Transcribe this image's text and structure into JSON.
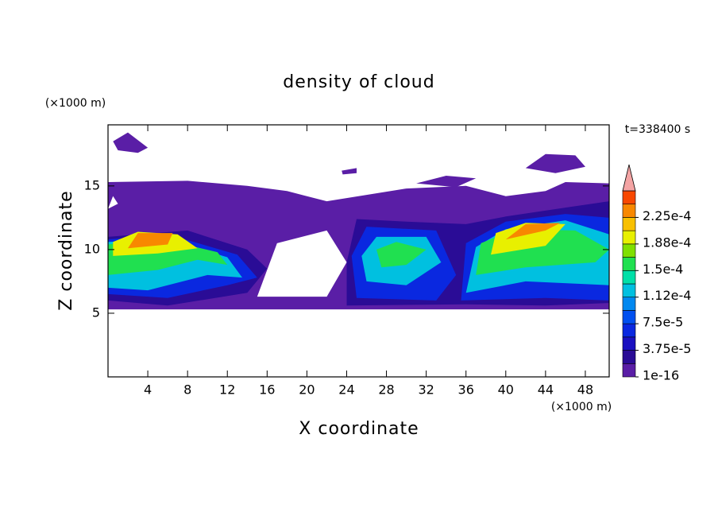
{
  "chart_data": {
    "type": "contour",
    "title": "density of cloud",
    "x_label": "X coordinate",
    "y_label": "Z coordinate",
    "x_unit": "(×1000 m)",
    "y_unit": "(×1000 m)",
    "annotation": "t=338400 s",
    "xlim": [
      0,
      50.4
    ],
    "ylim": [
      0,
      19.8
    ],
    "xticks": [
      4,
      8,
      12,
      16,
      20,
      24,
      28,
      32,
      36,
      40,
      44,
      48
    ],
    "yticks": [
      5,
      10,
      15
    ],
    "colorbar": {
      "levels": [
        1e-16,
        1.875e-05,
        3.75e-05,
        5.625e-05,
        7.5e-05,
        9.375e-05,
        0.0001125,
        0.00013125,
        0.00015,
        0.00016875,
        0.0001875,
        0.00020625,
        0.000225,
        0.00024375,
        0.0002625
      ],
      "ticks": [
        {
          "value": 1e-16,
          "label": "1e-16"
        },
        {
          "value": 3.75e-05,
          "label": "3.75e-5"
        },
        {
          "value": 7.5e-05,
          "label": "7.5e-5"
        },
        {
          "value": 0.0001125,
          "label": "1.12e-4"
        },
        {
          "value": 0.00015,
          "label": "1.5e-4"
        },
        {
          "value": 0.0001875,
          "label": "1.88e-4"
        },
        {
          "value": 0.000225,
          "label": "2.25e-4"
        }
      ],
      "colors": [
        "#5a1ea6",
        "#2a0c96",
        "#1a10c0",
        "#0a28e0",
        "#0050f0",
        "#0088f0",
        "#00c0e0",
        "#00e0a8",
        "#20e050",
        "#80e000",
        "#e8f000",
        "#f8c000",
        "#f88800",
        "#f84800"
      ],
      "over_color": "#f4a4a4"
    }
  }
}
